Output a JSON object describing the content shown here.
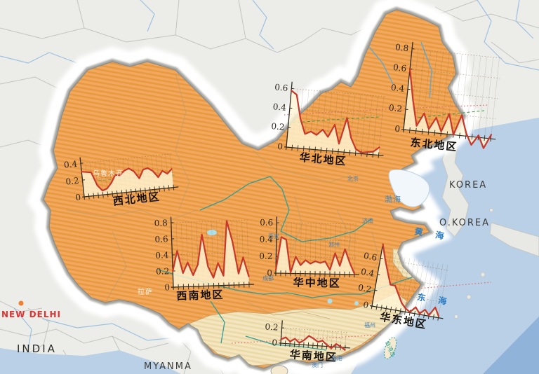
{
  "map_labels": {
    "new_delhi": "NEW DELHI",
    "india": "INDIA",
    "myanmar": "MYANMA",
    "korea_north": "KOREA",
    "korea_south": "O.KOREA",
    "bohai_sea": "渤海",
    "yellow_sea": "黄 海",
    "east_china_sea": "东 海",
    "taiwan": "台湾岛",
    "hongkong": "香港",
    "macau": "澳门",
    "fuzhou": "福州",
    "beijing": "北京",
    "jinan": "济南",
    "zhengzhou": "郑州",
    "xian": "西安",
    "chengdu": "成都",
    "lhasa": "拉萨",
    "urumqi": "乌鲁木齐"
  },
  "colors": {
    "china_fill": "#f2a95f",
    "china_stripe": "#e9993f",
    "south_fill": "#f4e6c0",
    "south_stripe": "#ecd9a8",
    "chart_line": "#c8372a",
    "chart_under_fill": "rgba(255,246,214,0.8)",
    "sea": "#b9d0e7",
    "deep_sea": "#8fb3d9",
    "outside_land": "#ecede9",
    "halo": "#ffffff",
    "border_fuzz": "#a5a5a1",
    "river": "#2f9e98"
  },
  "chart_data": [
    {
      "id": "xibei",
      "type": "line",
      "region": "西北地区",
      "ymax": 0.4,
      "yticks": [
        "0.4",
        "0.2",
        "0"
      ],
      "values": [
        0.3,
        0.29,
        0.28,
        0.12,
        0.05,
        0.07,
        0.13,
        0.22,
        0.21,
        0.26,
        0.28,
        0.24,
        0.15,
        0.25,
        0.26,
        0.22,
        0.14,
        0.21,
        0.17,
        0.22
      ]
    },
    {
      "id": "huabei",
      "type": "line",
      "region": "华北地区",
      "ymax": 0.6,
      "yticks": [
        "0.6",
        "0.4",
        "0.2",
        "0"
      ],
      "values": [
        0.58,
        0.54,
        0.3,
        0.15,
        0.18,
        0.15,
        0.21,
        0.14,
        0.27,
        0.08,
        0.35,
        0.15,
        0.04,
        0.01,
        0.02,
        0.03,
        0.08
      ]
    },
    {
      "id": "dongbei",
      "type": "line",
      "region": "东北地区",
      "ymax": 0.8,
      "yticks": [
        "0.8",
        "0.6",
        "0.4",
        "0.2",
        "0"
      ],
      "values": [
        0.6,
        0.3,
        0.05,
        0.18,
        0.03,
        0.15,
        0.02,
        0.2,
        0.0,
        0.2,
        0.03,
        -0.08,
        0.02,
        -0.1,
        0.04
      ]
    },
    {
      "id": "xinan",
      "type": "line",
      "region": "西南地区",
      "ymax": 0.8,
      "yticks": [
        "0.8",
        "0.6",
        "0.4",
        "0.2",
        "0"
      ],
      "values": [
        0.2,
        0.45,
        0.17,
        0.3,
        0.14,
        0.27,
        0.64,
        0.24,
        0.1,
        0.28,
        0.12,
        0.8,
        0.54,
        0.14,
        0.34,
        0.1
      ]
    },
    {
      "id": "huazhong",
      "type": "line",
      "region": "华中地区",
      "ymax": 0.6,
      "yticks": [
        "0.6",
        "0.4",
        "0.2",
        "0"
      ],
      "values": [
        0.04,
        0.43,
        0.4,
        0.01,
        0.2,
        0.1,
        0.16,
        0.12,
        0.15,
        0.13,
        0.15,
        0.05,
        0.25,
        0.1,
        0.3,
        0.14,
        0.01
      ]
    },
    {
      "id": "huadong",
      "type": "line",
      "region": "华东地区",
      "ymax": 0.6,
      "yticks": [
        "0.6",
        "0.4",
        "0.2",
        "0"
      ],
      "values": [
        0.78,
        0.6,
        0.45,
        0.3,
        0.3,
        0.2,
        0.1,
        0.04,
        0.01,
        0.08,
        0.01,
        0.07,
        0.01,
        0.12,
        0.02
      ]
    },
    {
      "id": "huanan",
      "type": "line",
      "region": "华南地区",
      "ymax": 0.2,
      "yticks": [
        "0.2",
        "0"
      ],
      "values": [
        0.05,
        0.08,
        0.03,
        0.07,
        0.02,
        0.06,
        0.12,
        0.09,
        0.05,
        0.07,
        0.02,
        -0.02,
        0.04,
        0.01,
        -0.03
      ]
    }
  ]
}
